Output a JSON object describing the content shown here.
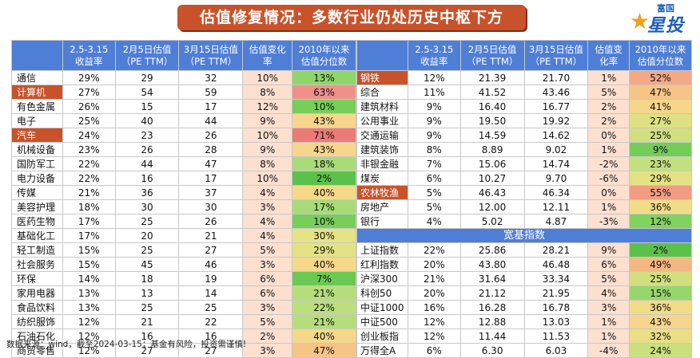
{
  "title": "估值修复情况：多数行业仍处历史中枢下方",
  "logo": {
    "small": "富国",
    "big": "星投顾",
    "star": "★"
  },
  "colors": {
    "header": "#4f7ed6",
    "highlight": "#c8532b",
    "chg_bg": "#fde0d0"
  },
  "headers": {
    "left": [
      "",
      "2.5-3.15\n收益率",
      "2月5日估值\n（PE TTM）",
      "3月15日估值\n（PE TTM）",
      "估值变化\n率",
      "2010年以来\n估值分位数"
    ],
    "right": [
      "",
      "2.5-3.15\n收益率",
      "2月5日估值\n（PE TTM）",
      "3月15日估值\n（PE TTM）",
      "估值变\n化率",
      "2010年以来\n估值分位数"
    ]
  },
  "left_rows": [
    {
      "name": "通信",
      "ret": "29%",
      "pe1": "29",
      "pe2": "32",
      "chg": "10%",
      "pct": "13%",
      "pct_color": "#8ed66a",
      "hl": false
    },
    {
      "name": "计算机",
      "ret": "27%",
      "pe1": "54",
      "pe2": "59",
      "chg": "8%",
      "pct": "63%",
      "pct_color": "#f0908a",
      "hl": true
    },
    {
      "name": "有色金属",
      "ret": "26%",
      "pe1": "15",
      "pe2": "17",
      "chg": "12%",
      "pct": "10%",
      "pct_color": "#77cf5a",
      "hl": false
    },
    {
      "name": "电子",
      "ret": "25%",
      "pe1": "40",
      "pe2": "44",
      "chg": "9%",
      "pct": "43%",
      "pct_color": "#f7d58c",
      "hl": false
    },
    {
      "name": "汽车",
      "ret": "24%",
      "pe1": "23",
      "pe2": "26",
      "chg": "10%",
      "pct": "71%",
      "pct_color": "#ec7b76",
      "hl": true
    },
    {
      "name": "机械设备",
      "ret": "23%",
      "pe1": "26",
      "pe2": "28",
      "chg": "9%",
      "pct": "43%",
      "pct_color": "#f7d58c",
      "hl": false
    },
    {
      "name": "国防军工",
      "ret": "22%",
      "pe1": "44",
      "pe2": "47",
      "chg": "8%",
      "pct": "18%",
      "pct_color": "#a9dc79",
      "hl": false
    },
    {
      "name": "电力设备",
      "ret": "22%",
      "pe1": "16",
      "pe2": "17",
      "chg": "10%",
      "pct": "2%",
      "pct_color": "#5cc14a",
      "hl": false
    },
    {
      "name": "传媒",
      "ret": "21%",
      "pe1": "36",
      "pe2": "37",
      "chg": "4%",
      "pct": "40%",
      "pct_color": "#f5d88a",
      "hl": false
    },
    {
      "name": "美容护理",
      "ret": "18%",
      "pe1": "30",
      "pe2": "30",
      "chg": "3%",
      "pct": "17%",
      "pct_color": "#a6db77",
      "hl": false
    },
    {
      "name": "医药生物",
      "ret": "17%",
      "pe1": "25",
      "pe2": "26",
      "chg": "4%",
      "pct": "10%",
      "pct_color": "#77cf5a",
      "hl": false
    },
    {
      "name": "基础化工",
      "ret": "17%",
      "pe1": "20",
      "pe2": "21",
      "chg": "4%",
      "pct": "30%",
      "pct_color": "#e6e385",
      "hl": false
    },
    {
      "name": "轻工制造",
      "ret": "15%",
      "pe1": "25",
      "pe2": "27",
      "chg": "5%",
      "pct": "29%",
      "pct_color": "#e3e284",
      "hl": false
    },
    {
      "name": "社会服务",
      "ret": "15%",
      "pe1": "45",
      "pe2": "46",
      "chg": "3%",
      "pct": "40%",
      "pct_color": "#f5d88a",
      "hl": false
    },
    {
      "name": "环保",
      "ret": "14%",
      "pe1": "18",
      "pe2": "19",
      "chg": "6%",
      "pct": "7%",
      "pct_color": "#6bc953",
      "hl": false
    },
    {
      "name": "家用电器",
      "ret": "13%",
      "pe1": "13",
      "pe2": "14",
      "chg": "6%",
      "pct": "21%",
      "pct_color": "#b5de7b",
      "hl": false
    },
    {
      "name": "食品饮料",
      "ret": "13%",
      "pe1": "25",
      "pe2": "25",
      "chg": "3%",
      "pct": "22%",
      "pct_color": "#bbdf7c",
      "hl": false
    },
    {
      "name": "纺织服饰",
      "ret": "12%",
      "pe1": "21",
      "pe2": "22",
      "chg": "5%",
      "pct": "21%",
      "pct_color": "#b5de7b",
      "hl": false
    },
    {
      "name": "石油石化",
      "ret": "12%",
      "pe1": "16",
      "pe2": "16",
      "chg": "2%",
      "pct": "40%",
      "pct_color": "#f5d88a",
      "hl": false
    },
    {
      "name": "商贸零售",
      "ret": "12%",
      "pe1": "27",
      "pe2": "27",
      "chg": "3%",
      "pct": "47%",
      "pct_color": "#f6c487",
      "hl": false
    }
  ],
  "right_rows": [
    {
      "name": "钢铁",
      "ret": "12%",
      "pe1": "21.39",
      "pe2": "21.70",
      "chg": "1%",
      "pct": "52%",
      "pct_color": "#f3a985",
      "hl": true
    },
    {
      "name": "综合",
      "ret": "11%",
      "pe1": "41.52",
      "pe2": "43.46",
      "chg": "5%",
      "pct": "47%",
      "pct_color": "#f6c487",
      "hl": false
    },
    {
      "name": "建筑材料",
      "ret": "9%",
      "pe1": "16.40",
      "pe2": "16.77",
      "chg": "2%",
      "pct": "41%",
      "pct_color": "#f5d68a",
      "hl": false
    },
    {
      "name": "公用事业",
      "ret": "9%",
      "pe1": "19.50",
      "pe2": "19.92",
      "chg": "2%",
      "pct": "27%",
      "pct_color": "#dde183",
      "hl": false
    },
    {
      "name": "交通运输",
      "ret": "9%",
      "pe1": "14.59",
      "pe2": "14.62",
      "chg": "0%",
      "pct": "25%",
      "pct_color": "#d1df80",
      "hl": false
    },
    {
      "name": "建筑装饰",
      "ret": "8%",
      "pe1": "8.89",
      "pe2": "9.02",
      "chg": "1%",
      "pct": "9%",
      "pct_color": "#73cd58",
      "hl": false
    },
    {
      "name": "非银金融",
      "ret": "7%",
      "pe1": "15.06",
      "pe2": "14.74",
      "chg": "-2%",
      "pct": "23%",
      "pct_color": "#c2e07e",
      "hl": false
    },
    {
      "name": "煤炭",
      "ret": "6%",
      "pe1": "10.27",
      "pe2": "9.70",
      "chg": "-6%",
      "pct": "29%",
      "pct_color": "#e3e284",
      "hl": false
    },
    {
      "name": "农林牧渔",
      "ret": "5%",
      "pe1": "46.43",
      "pe2": "46.34",
      "chg": "0%",
      "pct": "55%",
      "pct_color": "#f29c83",
      "hl": true
    },
    {
      "name": "房地产",
      "ret": "5%",
      "pe1": "12.00",
      "pe2": "12.11",
      "chg": "1%",
      "pct": "36%",
      "pct_color": "#f1dc88",
      "hl": false
    },
    {
      "name": "银行",
      "ret": "4%",
      "pe1": "5.02",
      "pe2": "4.87",
      "chg": "-3%",
      "pct": "12%",
      "pct_color": "#82d25e",
      "hl": false
    }
  ],
  "broad_title": "宽基指数",
  "broad_rows": [
    {
      "name": "上证指数",
      "ret": "22%",
      "pe1": "25.86",
      "pe2": "28.21",
      "chg": "9%",
      "pct": "2%",
      "pct_color": "#5cc14a"
    },
    {
      "name": "红利指数",
      "ret": "20%",
      "pe1": "43.80",
      "pe2": "46.48",
      "chg": "6%",
      "pct": "49%",
      "pct_color": "#f3b784"
    },
    {
      "name": "沪深300",
      "ret": "21%",
      "pe1": "31.64",
      "pe2": "33.34",
      "chg": "5%",
      "pct": "25%",
      "pct_color": "#d1df80"
    },
    {
      "name": "科创50",
      "ret": "20%",
      "pe1": "21.12",
      "pe2": "21.95",
      "chg": "4%",
      "pct": "15%",
      "pct_color": "#96d76b"
    },
    {
      "name": "中证1000",
      "ret": "16%",
      "pe1": "16.28",
      "pe2": "16.78",
      "chg": "3%",
      "pct": "36%",
      "pct_color": "#f1dc88"
    },
    {
      "name": "中证500",
      "ret": "12%",
      "pe1": "12.88",
      "pe2": "13.03",
      "chg": "1%",
      "pct": "43%",
      "pct_color": "#f7d58c"
    },
    {
      "name": "创业板指",
      "ret": "12%",
      "pe1": "11.44",
      "pe2": "11.53",
      "chg": "1%",
      "pct": "32%",
      "pct_color": "#eadf86"
    },
    {
      "name": "万得全A",
      "ret": "6%",
      "pe1": "6.30",
      "pe2": "6.03",
      "chg": "-4%",
      "pct": "24%",
      "pct_color": "#c9e07f"
    }
  ],
  "footer": "数据来源：wind，截至2024-03-15；基金有风险，投资需谨慎!"
}
